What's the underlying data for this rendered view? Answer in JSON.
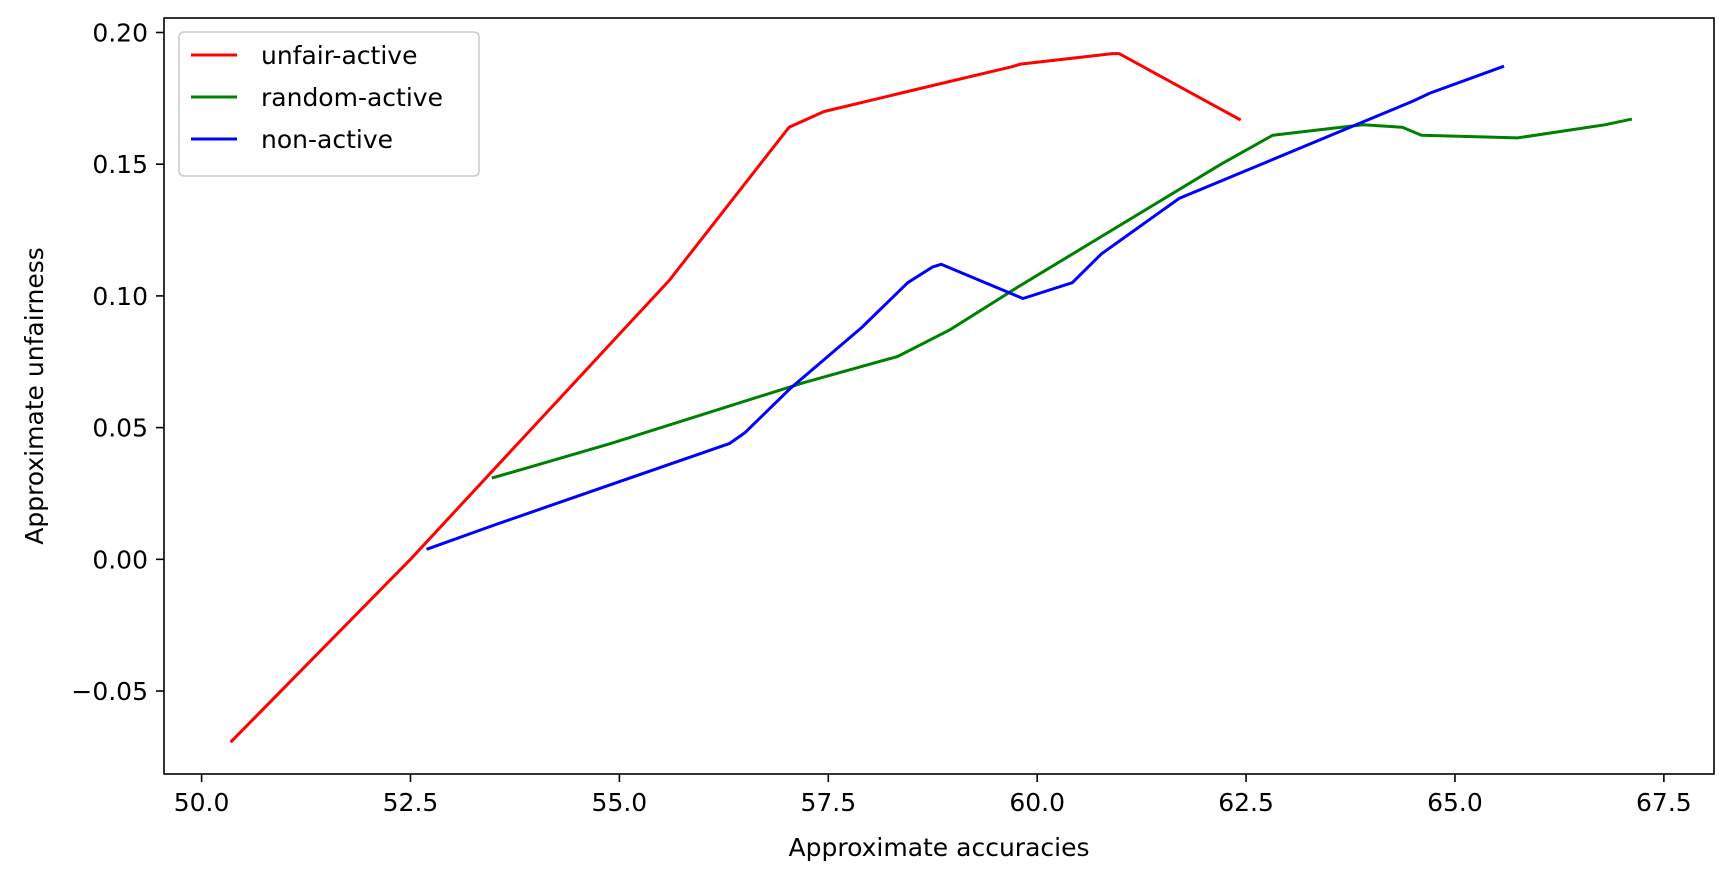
{
  "chart_data": {
    "type": "line",
    "title": "",
    "xlabel": "Approximate accuracies",
    "ylabel": "Approximate unfairness",
    "xlim": [
      49.55,
      68.1
    ],
    "ylim": [
      -0.0815,
      0.2055
    ],
    "x_ticks": [
      50.0,
      52.5,
      55.0,
      57.5,
      60.0,
      62.5,
      65.0,
      67.5
    ],
    "x_tick_labels": [
      "50.0",
      "52.5",
      "55.0",
      "57.5",
      "60.0",
      "62.5",
      "65.0",
      "67.5"
    ],
    "y_ticks": [
      -0.05,
      0.0,
      0.05,
      0.1,
      0.15,
      0.2
    ],
    "y_tick_labels": [
      "−0.05",
      "0.00",
      "0.05",
      "0.10",
      "0.15",
      "0.20"
    ],
    "grid": false,
    "legend_position": "top-left",
    "series": [
      {
        "name": "unfair-active",
        "color": "#ff0000",
        "points": [
          [
            50.36,
            -0.069
          ],
          [
            52.5,
            0.0
          ],
          [
            55.6,
            0.106
          ],
          [
            57.03,
            0.164
          ],
          [
            57.45,
            0.17
          ],
          [
            58.9,
            0.181
          ],
          [
            59.7,
            0.187
          ],
          [
            59.8,
            0.188
          ],
          [
            60.9,
            0.192
          ],
          [
            60.98,
            0.192
          ],
          [
            62.42,
            0.167
          ]
        ]
      },
      {
        "name": "random-active",
        "color": "#008000",
        "points": [
          [
            53.49,
            0.031
          ],
          [
            54.9,
            0.044
          ],
          [
            57.2,
            0.067
          ],
          [
            58.33,
            0.077
          ],
          [
            58.95,
            0.087
          ],
          [
            59.75,
            0.103
          ],
          [
            62.2,
            0.15
          ],
          [
            62.82,
            0.161
          ],
          [
            63.9,
            0.165
          ],
          [
            64.37,
            0.164
          ],
          [
            64.6,
            0.161
          ],
          [
            65.75,
            0.16
          ],
          [
            66.8,
            0.165
          ],
          [
            67.1,
            0.167
          ]
        ]
      },
      {
        "name": "non-active",
        "color": "#0000ff",
        "points": [
          [
            52.71,
            0.004
          ],
          [
            53.5,
            0.013
          ],
          [
            56.32,
            0.044
          ],
          [
            56.5,
            0.048
          ],
          [
            57.05,
            0.065
          ],
          [
            57.9,
            0.088
          ],
          [
            58.45,
            0.105
          ],
          [
            58.75,
            0.111
          ],
          [
            58.85,
            0.112
          ],
          [
            59.83,
            0.099
          ],
          [
            60.42,
            0.105
          ],
          [
            60.77,
            0.116
          ],
          [
            61.7,
            0.137
          ],
          [
            64.5,
            0.174
          ],
          [
            64.7,
            0.177
          ],
          [
            65.57,
            0.187
          ]
        ]
      }
    ]
  }
}
